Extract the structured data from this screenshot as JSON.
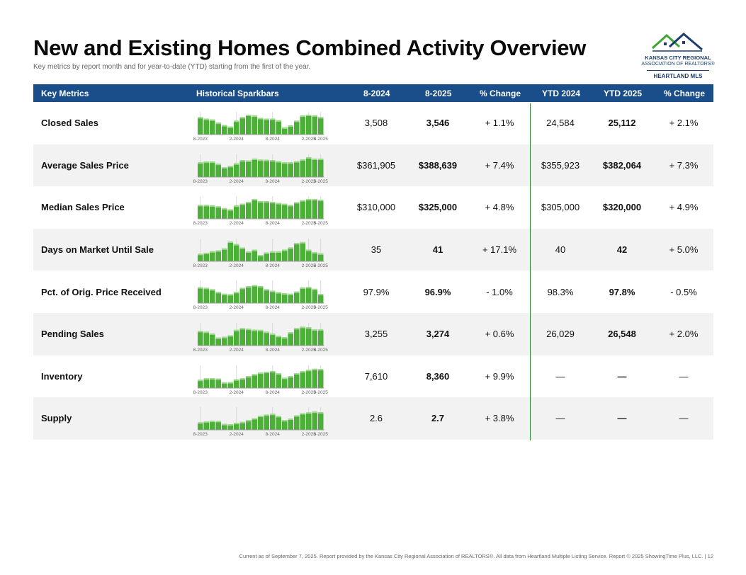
{
  "header": {
    "title": "New and Existing Homes Combined Activity Overview",
    "subtitle": "Key metrics by report month and for year-to-date (YTD) starting from the first of the year."
  },
  "logo": {
    "line1": "KANSAS CITY REGIONAL",
    "line2": "ASSOCIATION OF REALTORS®",
    "line3": "HEARTLAND MLS"
  },
  "table": {
    "columns": [
      "Key Metrics",
      "Historical Sparkbars",
      "8-2024",
      "8-2025",
      "% Change",
      "YTD 2024",
      "YTD 2025",
      "% Change"
    ],
    "spark_ticks": [
      "8-2023",
      "2-2024",
      "8-2024",
      "2-2025",
      "8-2025"
    ],
    "rows": [
      {
        "metric": "Closed Sales",
        "m2024": "3,508",
        "m2025": "3,546",
        "chg": "+ 1.1%",
        "ytd2024": "24,584",
        "ytd2025": "25,112",
        "ytdchg": "+ 2.1%"
      },
      {
        "metric": "Average Sales Price",
        "m2024": "$361,905",
        "m2025": "$388,639",
        "chg": "+ 7.4%",
        "ytd2024": "$355,923",
        "ytd2025": "$382,064",
        "ytdchg": "+ 7.3%"
      },
      {
        "metric": "Median Sales Price",
        "m2024": "$310,000",
        "m2025": "$325,000",
        "chg": "+ 4.8%",
        "ytd2024": "$305,000",
        "ytd2025": "$320,000",
        "ytdchg": "+ 4.9%"
      },
      {
        "metric": "Days on Market Until Sale",
        "m2024": "35",
        "m2025": "41",
        "chg": "+ 17.1%",
        "ytd2024": "40",
        "ytd2025": "42",
        "ytdchg": "+ 5.0%"
      },
      {
        "metric": "Pct. of Orig. Price Received",
        "m2024": "97.9%",
        "m2025": "96.9%",
        "chg": "- 1.0%",
        "ytd2024": "98.3%",
        "ytd2025": "97.8%",
        "ytdchg": "- 0.5%"
      },
      {
        "metric": "Pending Sales",
        "m2024": "3,255",
        "m2025": "3,274",
        "chg": "+ 0.6%",
        "ytd2024": "26,029",
        "ytd2025": "26,548",
        "ytdchg": "+ 2.0%"
      },
      {
        "metric": "Inventory",
        "m2024": "7,610",
        "m2025": "8,360",
        "chg": "+ 9.9%",
        "ytd2024": "—",
        "ytd2025": "—",
        "ytdchg": "—"
      },
      {
        "metric": "Supply",
        "m2024": "2.6",
        "m2025": "2.7",
        "chg": "+ 3.8%",
        "ytd2024": "—",
        "ytd2025": "—",
        "ytdchg": "—"
      }
    ]
  },
  "chart_data": [
    {
      "type": "bar",
      "title": "Closed Sales",
      "values": [
        0.88,
        0.8,
        0.76,
        0.6,
        0.48,
        0.4,
        0.7,
        0.88,
        1.0,
        0.96,
        0.84,
        0.8,
        0.8,
        0.72,
        0.36,
        0.46,
        0.7,
        0.96,
        1.0,
        0.97,
        0.88
      ]
    },
    {
      "type": "bar",
      "title": "Average Sales Price",
      "values": [
        0.74,
        0.78,
        0.78,
        0.67,
        0.5,
        0.56,
        0.69,
        0.85,
        0.83,
        0.93,
        0.88,
        0.87,
        0.85,
        0.8,
        0.74,
        0.74,
        0.8,
        0.89,
        1.0,
        0.93,
        0.93
      ]
    },
    {
      "type": "bar",
      "title": "Median Sales Price",
      "values": [
        0.7,
        0.7,
        0.68,
        0.63,
        0.54,
        0.48,
        0.67,
        0.76,
        0.85,
        1.0,
        0.89,
        0.89,
        0.85,
        0.8,
        0.76,
        0.7,
        0.84,
        0.94,
        1.0,
        1.0,
        0.96
      ]
    },
    {
      "type": "bar",
      "title": "Days on Market Until Sale",
      "values": [
        0.38,
        0.43,
        0.51,
        0.55,
        0.65,
        1.0,
        0.87,
        0.69,
        0.5,
        0.58,
        0.32,
        0.44,
        0.5,
        0.5,
        0.59,
        0.7,
        0.92,
        0.97,
        0.58,
        0.46,
        0.4
      ]
    },
    {
      "type": "bar",
      "title": "Pct. of Orig. Price Received",
      "values": [
        0.8,
        0.77,
        0.7,
        0.56,
        0.47,
        0.45,
        0.56,
        0.77,
        0.85,
        0.91,
        0.86,
        0.7,
        0.62,
        0.55,
        0.49,
        0.47,
        0.58,
        0.79,
        0.81,
        0.72,
        0.46
      ]
    },
    {
      "type": "bar",
      "title": "Pending Sales",
      "values": [
        0.74,
        0.7,
        0.61,
        0.4,
        0.44,
        0.52,
        0.79,
        0.88,
        0.85,
        0.8,
        0.79,
        0.7,
        0.6,
        0.49,
        0.42,
        0.67,
        0.88,
        0.95,
        0.92,
        0.82,
        0.82
      ]
    },
    {
      "type": "bar",
      "title": "Inventory",
      "values": [
        0.42,
        0.49,
        0.5,
        0.48,
        0.29,
        0.3,
        0.44,
        0.5,
        0.6,
        0.7,
        0.78,
        0.82,
        0.86,
        0.75,
        0.52,
        0.6,
        0.75,
        0.85,
        0.92,
        0.97,
        0.96
      ]
    },
    {
      "type": "bar",
      "title": "Supply",
      "values": [
        0.38,
        0.43,
        0.46,
        0.45,
        0.3,
        0.28,
        0.35,
        0.4,
        0.49,
        0.59,
        0.71,
        0.77,
        0.81,
        0.7,
        0.49,
        0.57,
        0.73,
        0.84,
        0.88,
        0.92,
        0.89
      ]
    }
  ],
  "colors": {
    "header_bg": "#1a4e8a",
    "bar_fill": "#4caf38",
    "bar_highlight": "#9fd88f",
    "divider": "#2e8b2e"
  },
  "footer": {
    "text": "Current as of September 7, 2025. Report provided by the Kansas City Regional Association of REALTORS®. All data from Heartland Multiple Listing Service. Report © 2025 ShowingTime Plus, LLC. | 12"
  }
}
